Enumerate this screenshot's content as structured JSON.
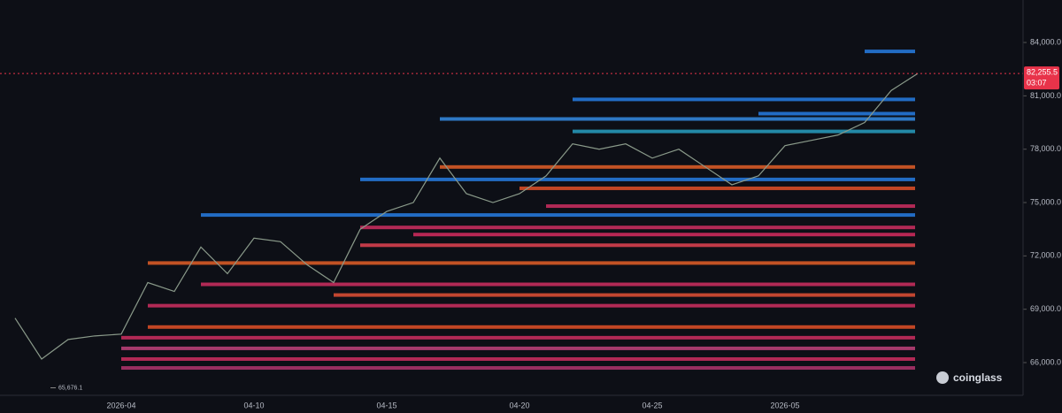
{
  "chart_data": {
    "type": "line",
    "categories": [
      null,
      null,
      null,
      null,
      "2026-04",
      null,
      null,
      null,
      null,
      "04-10",
      null,
      null,
      null,
      null,
      "04-15",
      null,
      null,
      null,
      null,
      "04-20",
      null,
      null,
      null,
      null,
      "04-25",
      null,
      null,
      null,
      null,
      "2026-05",
      null,
      null,
      null,
      null,
      null
    ],
    "series": [
      {
        "color": "#8a9a8a",
        "values": [
          68500,
          66200,
          67300,
          67500,
          67600,
          70500,
          70000,
          72500,
          71000,
          73000,
          72800,
          71500,
          70500,
          73500,
          74500,
          75000,
          77500,
          75500,
          75000,
          75500,
          76500,
          78300,
          78000,
          78300,
          77500,
          78000,
          77000,
          76000,
          76500,
          78200,
          78500,
          78800,
          79500,
          81300,
          82255.5
        ]
      }
    ],
    "levels": [
      {
        "price": 83500,
        "start": 32,
        "color": "#2a8cff"
      },
      {
        "price": 80800,
        "start": 21,
        "color": "#2a8cff"
      },
      {
        "price": 80000,
        "start": 28,
        "color": "#2a8cff"
      },
      {
        "price": 79700,
        "start": 16,
        "color": "#3a9cff"
      },
      {
        "price": 79000,
        "start": 21,
        "color": "#2bb3d8"
      },
      {
        "price": 77000,
        "start": 16,
        "color": "#ff6a2a"
      },
      {
        "price": 76300,
        "start": 13,
        "color": "#2a8cff"
      },
      {
        "price": 75800,
        "start": 19,
        "color": "#ff5a2a"
      },
      {
        "price": 74800,
        "start": 20,
        "color": "#e8336b"
      },
      {
        "price": 74300,
        "start": 7,
        "color": "#2a8cff"
      },
      {
        "price": 73600,
        "start": 13,
        "color": "#e8336b"
      },
      {
        "price": 73200,
        "start": 15,
        "color": "#f0306a"
      },
      {
        "price": 72600,
        "start": 13,
        "color": "#ff4a5a"
      },
      {
        "price": 71600,
        "start": 5,
        "color": "#ff6a2a"
      },
      {
        "price": 70400,
        "start": 7,
        "color": "#e8336b"
      },
      {
        "price": 69800,
        "start": 12,
        "color": "#ff5a3a"
      },
      {
        "price": 69200,
        "start": 5,
        "color": "#e8336b"
      },
      {
        "price": 68000,
        "start": 5,
        "color": "#ff5a2a"
      },
      {
        "price": 67400,
        "start": 4,
        "color": "#e8336b"
      },
      {
        "price": 66800,
        "start": 4,
        "color": "#d94a8a"
      },
      {
        "price": 66200,
        "start": 4,
        "color": "#e8336b"
      },
      {
        "price": 65700,
        "start": 4,
        "color": "#c83a7a"
      }
    ],
    "ylim": [
      64160,
      86390
    ],
    "yticks": [
      {
        "value": 66000,
        "label": "66,000.0"
      },
      {
        "value": 69000,
        "label": "69,000.0"
      },
      {
        "value": 72000,
        "label": "72,000.0"
      },
      {
        "value": 75000,
        "label": "75,000.0"
      },
      {
        "value": 78000,
        "label": "78,000.0"
      },
      {
        "value": 81000,
        "label": "81,000.0"
      },
      {
        "value": 84000,
        "label": "84,000.0"
      }
    ],
    "last_price": {
      "value": 82255.5,
      "label": "82,255.5"
    },
    "countdown": "03:07",
    "low": {
      "value": 65676.1,
      "label": "65,676.1"
    },
    "watermark": "coinglass"
  }
}
